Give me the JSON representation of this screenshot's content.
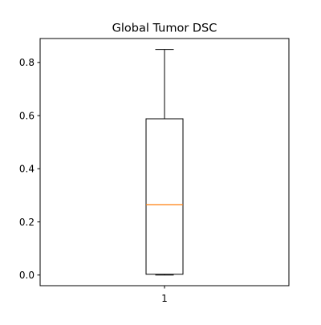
{
  "chart_data": {
    "type": "box",
    "title": "Global Tumor DSC",
    "xlabel": "",
    "ylabel": "",
    "categories": [
      "1"
    ],
    "ylim": [
      -0.04,
      0.89
    ],
    "yticks": [
      0.0,
      0.2,
      0.4,
      0.6,
      0.8
    ],
    "ytick_labels": [
      "0.0",
      "0.2",
      "0.4",
      "0.6",
      "0.8"
    ],
    "grid": false,
    "boxes": [
      {
        "category": "1",
        "whisker_low": 0.0,
        "q1": 0.003,
        "median": 0.265,
        "q3": 0.588,
        "whisker_high": 0.849
      }
    ],
    "colors": {
      "box": "#000000",
      "median": "#ff7f0e"
    }
  }
}
